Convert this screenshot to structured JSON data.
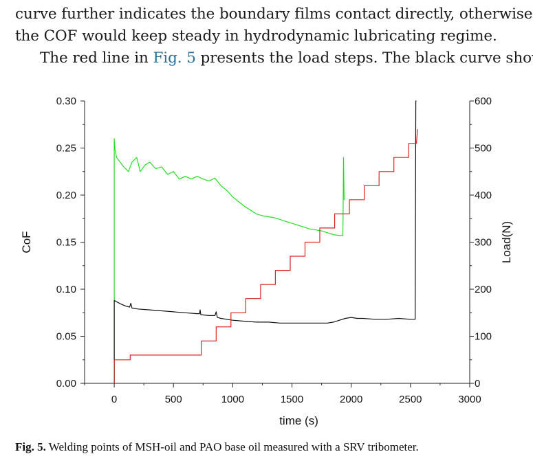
{
  "text": {
    "line1": "curve further indicates the boundary films contact directly, otherwise,",
    "line2": "the COF would keep steady in hydrodynamic lubricating regime.",
    "line3_pre": "The red line in ",
    "line3_link": "Fig. 5",
    "line3_post": " presents the load steps. The black curve shows"
  },
  "caption": {
    "label": "Fig. 5.",
    "text": " Welding points of MSH-oil and PAO base oil measured with a SRV tribometer."
  },
  "chart_data": {
    "type": "line",
    "xlabel": "time (s)",
    "ylabel_left": "CoF",
    "ylabel_right": "Load(N)",
    "xlim": [
      -250,
      3000
    ],
    "ylim_left": [
      0,
      0.3
    ],
    "ylim_right": [
      0,
      600
    ],
    "x_ticks": [
      "0",
      "500",
      "1000",
      "1500",
      "2000",
      "2500",
      "3000"
    ],
    "y_left_ticks": [
      "0.00",
      "0.05",
      "0.10",
      "0.15",
      "0.20",
      "0.25",
      "0.30"
    ],
    "y_right_ticks": [
      "0",
      "100",
      "200",
      "300",
      "400",
      "500",
      "600"
    ],
    "grid": false,
    "colors": {
      "green": "#22dd22",
      "black": "#111111",
      "red": "#dd2222"
    },
    "series": [
      {
        "color": "green",
        "axis": "left",
        "x": [
          0,
          0,
          5,
          20,
          50,
          80,
          120,
          150,
          190,
          220,
          260,
          300,
          350,
          400,
          450,
          500,
          550,
          600,
          650,
          700,
          750,
          800,
          850,
          900,
          950,
          1000,
          1050,
          1100,
          1150,
          1200,
          1250,
          1300,
          1350,
          1400,
          1450,
          1500,
          1550,
          1600,
          1650,
          1700,
          1750,
          1800,
          1850,
          1900,
          1930,
          1935,
          1940,
          1945
        ],
        "y": [
          0,
          0.26,
          0.25,
          0.24,
          0.235,
          0.23,
          0.225,
          0.235,
          0.24,
          0.225,
          0.232,
          0.235,
          0.228,
          0.23,
          0.222,
          0.225,
          0.217,
          0.22,
          0.217,
          0.22,
          0.217,
          0.215,
          0.218,
          0.21,
          0.205,
          0.198,
          0.193,
          0.188,
          0.184,
          0.18,
          0.178,
          0.177,
          0.176,
          0.174,
          0.172,
          0.17,
          0.168,
          0.166,
          0.164,
          0.163,
          0.162,
          0.16,
          0.158,
          0.157,
          0.157,
          0.24,
          0.195,
          0.195
        ]
      },
      {
        "color": "black",
        "axis": "left",
        "x": [
          0,
          0,
          30,
          60,
          100,
          130,
          140,
          150,
          200,
          300,
          400,
          500,
          600,
          700,
          720,
          725,
          730,
          800,
          850,
          860,
          870,
          900,
          1000,
          1100,
          1200,
          1300,
          1400,
          1500,
          1600,
          1700,
          1800,
          1850,
          1900,
          1950,
          2000,
          2050,
          2100,
          2200,
          2300,
          2400,
          2500,
          2540,
          2545,
          2550
        ],
        "y": [
          0,
          0.088,
          0.086,
          0.084,
          0.082,
          0.081,
          0.085,
          0.08,
          0.079,
          0.078,
          0.077,
          0.076,
          0.075,
          0.074,
          0.074,
          0.078,
          0.073,
          0.072,
          0.072,
          0.076,
          0.07,
          0.069,
          0.067,
          0.066,
          0.065,
          0.065,
          0.064,
          0.064,
          0.064,
          0.064,
          0.064,
          0.065,
          0.067,
          0.069,
          0.07,
          0.069,
          0.069,
          0.068,
          0.068,
          0.069,
          0.068,
          0.068,
          0.3,
          0.3
        ]
      },
      {
        "color": "red",
        "axis": "right",
        "x": [
          0,
          0,
          135,
          135,
          735,
          735,
          860,
          860,
          985,
          985,
          1110,
          1110,
          1235,
          1235,
          1360,
          1360,
          1485,
          1485,
          1610,
          1610,
          1735,
          1735,
          1860,
          1860,
          1985,
          1985,
          2110,
          2110,
          2235,
          2235,
          2360,
          2360,
          2485,
          2485,
          2550,
          2560
        ],
        "y": [
          0,
          50,
          50,
          60,
          60,
          90,
          90,
          120,
          120,
          150,
          150,
          180,
          180,
          210,
          210,
          240,
          240,
          270,
          270,
          300,
          300,
          330,
          330,
          360,
          360,
          390,
          390,
          420,
          420,
          450,
          450,
          480,
          480,
          510,
          510,
          540
        ]
      }
    ]
  }
}
